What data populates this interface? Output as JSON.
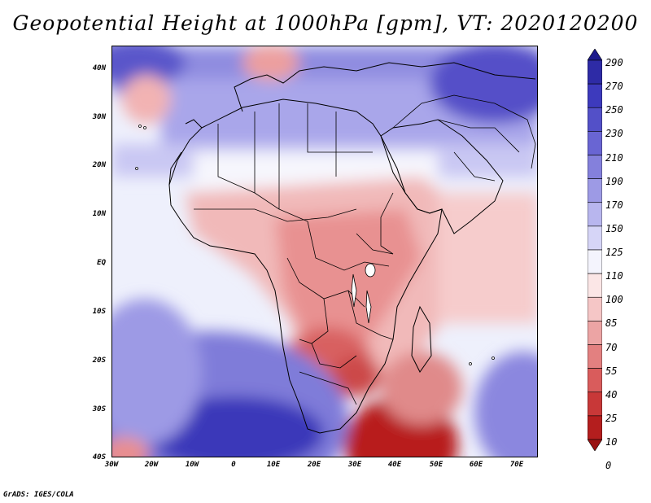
{
  "title": "Geopotential Height at 1000hPa [gpm], VT: 2020120200",
  "variable": "Geopotential Height",
  "level": "1000hPa",
  "units": "gpm",
  "valid_time": "2020120200",
  "map": {
    "region": "Africa and surroundings",
    "lat_range": [
      -40,
      45
    ],
    "lon_range": [
      -30,
      77
    ],
    "lat_labels": [
      "40N",
      "30N",
      "20N",
      "10N",
      "EQ",
      "10S",
      "20S",
      "30S",
      "40S"
    ],
    "lon_labels": [
      "30W",
      "20W",
      "10W",
      "0",
      "10E",
      "20E",
      "30E",
      "40E",
      "50E",
      "60E",
      "70E"
    ],
    "features": [
      {
        "name": "Mediterranean low-red patch",
        "level": "50-100"
      },
      {
        "name": "Subtropical Atlantic high",
        "level": "high"
      },
      {
        "name": "Central Africa lowlands",
        "level": "70-100"
      },
      {
        "name": "Southern Africa heat low",
        "level": "40-70"
      },
      {
        "name": "South-east Atlantic high",
        "level": "230-250"
      },
      {
        "name": "Southern Indian Ocean low",
        "level": "0-40"
      }
    ]
  },
  "colorbar": {
    "labels": [
      "290",
      "270",
      "250",
      "230",
      "210",
      "190",
      "170",
      "150",
      "125",
      "110",
      "100",
      "85",
      "70",
      "55",
      "40",
      "25",
      "10",
      "0"
    ],
    "colors": [
      "#1d1a8c",
      "#2e2ba6",
      "#3d3abd",
      "#5350c8",
      "#6965d3",
      "#8480dc",
      "#9d9ae5",
      "#b8b6ee",
      "#d6d5f7",
      "#f4f4fd",
      "#fbe6e6",
      "#f5c6c6",
      "#eca4a4",
      "#e38080",
      "#d95c5c",
      "#c83838",
      "#b41e1e",
      "#9a1212"
    ]
  },
  "credit": "GrADS: IGES/COLA"
}
